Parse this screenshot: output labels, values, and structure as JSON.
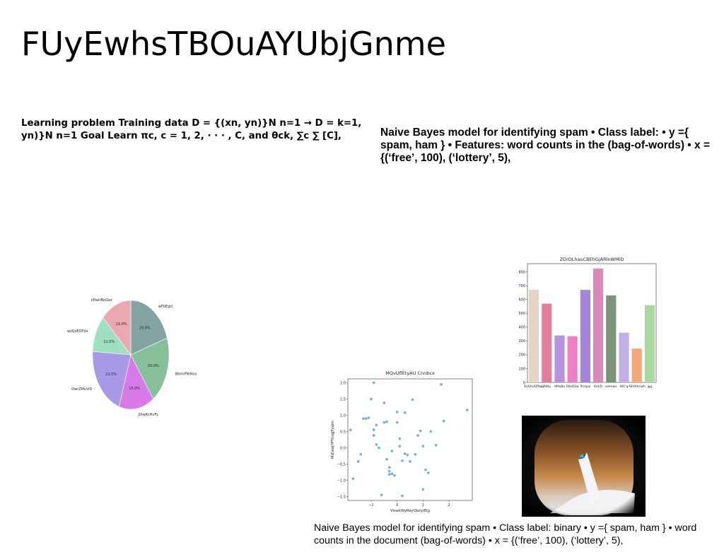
{
  "slide": {
    "title": "FUyEwhsTBOuAYUbjGnme",
    "left_text": "Learning problem Training data D = {(xn, yn)}N n=1 → D = k=1, yn)}N n=1 Goal Learn πc, c = 1, 2, · · · , C, and θck, ∑c ∑ [C],",
    "right_text": "Naive Bayes model for identifying spam • Class label: • y ={ spam, ham } • Features: word counts in the (bag-of-words) • x = {(‘free’, 100), (‘lottery’, 5),",
    "bottom_text": "Naive Bayes model for identifying spam • Class label: binary • y ={ spam, ham } • word counts in the document (bag-of-words) • x = {(‘free’, 100), (‘lottery’, 5),"
  },
  "colors": {
    "pie": [
      "#85a3a2",
      "#86bf9a",
      "#d87ae8",
      "#a99ae8",
      "#9ee0c0",
      "#eaa9b2"
    ],
    "bars": [
      "#e6d5c4",
      "#e07f9a",
      "#b693dd",
      "#f07fc8",
      "#a585d8",
      "#d98ab8",
      "#7c9478",
      "#c0b0e6",
      "#f6a879",
      "#a9d8a0"
    ],
    "scatter": "#7fb3d5",
    "axis": "#333333"
  },
  "chart_data": [
    {
      "type": "pie",
      "labels": [
        "wFbEgcl",
        "BbmiPWHox",
        "JlXwKcHvFL",
        "OwrZMvViD",
        "QwzQsEOFdx",
        "kHakiBoGez"
      ],
      "values": [
        20.0,
        20.0,
        15.0,
        21.0,
        11.0,
        13.0
      ],
      "value_labels": [
        "20.0%",
        "20.0%",
        "15.0%",
        "21.0%",
        "11.0%",
        "13.0%"
      ]
    },
    {
      "type": "bar",
      "title": "ZDrDLhauCBEhGjARlnWMiD",
      "categories": [
        "EzXAsXZNqk",
        "JAWq",
        "HMaBa",
        "EKeQSw",
        "Prnqox",
        "KaVD",
        "oolmwo",
        "WU q",
        "AEHfdrriwh",
        "jgg"
      ],
      "values": [
        670,
        570,
        340,
        335,
        670,
        825,
        630,
        360,
        245,
        560
      ],
      "yticks": [
        "0",
        "100",
        "200",
        "300",
        "400",
        "500",
        "600",
        "700",
        "800"
      ],
      "ylim": [
        0,
        860
      ]
    },
    {
      "type": "scatter",
      "title": "MQvUflEtyAU Cnnbcx",
      "xlabel": "ViswkWyReyObsyrElg",
      "ylabel": "MlZwajYPTkvgjFyqim",
      "xticks": [
        "−1",
        "0",
        "1",
        "2"
      ],
      "yticks": [
        "−1.5",
        "−1.0",
        "−0.5",
        "0.0",
        "0.5",
        "1.0",
        "1.5",
        "2.0"
      ],
      "xlim": [
        -1.9,
        2.9
      ],
      "ylim": [
        -1.62,
        2.12
      ],
      "x": [
        -0.9,
        -1.8,
        -1.4,
        -1.3,
        -1.2,
        -1.1,
        -1.0,
        -0.9,
        -0.8,
        -0.7,
        -0.6,
        -0.5,
        -0.4,
        -0.4,
        -0.3,
        -0.2,
        -0.2,
        -0.1,
        0.0,
        0.1,
        0.2,
        0.3,
        0.4,
        0.5,
        0.6,
        0.8,
        0.9,
        1.0,
        1.1,
        1.2,
        1.3,
        1.5,
        1.7,
        1.8,
        2.7,
        -1.7,
        -1.5,
        0.0,
        -0.3,
        0.2,
        0.7,
        1.0,
        -0.9,
        -0.5,
        0.1,
        -0.8,
        -0.3,
        0.3
      ],
      "y": [
        2.0,
        0.55,
        -0.2,
        0.9,
        0.9,
        0.92,
        1.5,
        0.55,
        0.1,
        0.0,
        -1.45,
        1.38,
        -0.35,
        0.8,
        -0.72,
        -0.1,
        -0.8,
        -0.85,
        0.78,
        0.05,
        -0.4,
        1.08,
        -0.22,
        -0.42,
        1.48,
        0.38,
        0.52,
        -1.28,
        -0.68,
        -0.77,
        0.5,
        0.08,
        1.95,
        0.82,
        1.16,
        -0.95,
        -0.42,
        1.1,
        -0.82,
        -1.48,
        -0.2,
        0.05,
        0.38,
        0.78,
        0.28,
        0.7,
        -0.6,
        -0.18
      ]
    }
  ]
}
